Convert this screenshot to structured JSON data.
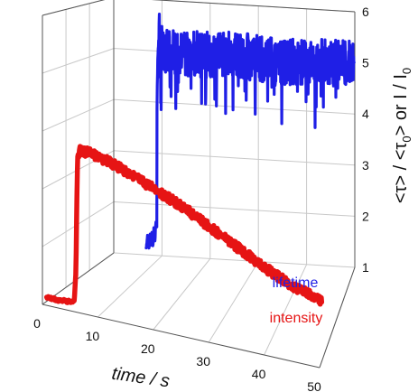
{
  "chart_data": {
    "type": "line",
    "projection": "3d-perspective",
    "x_axis": {
      "label": "time / s",
      "ticks": [
        0,
        10,
        20,
        30,
        40,
        50
      ],
      "range": [
        0,
        50
      ]
    },
    "z_axis": {
      "label": "<τ> / <τ0> or I / I0",
      "label_parts": {
        "a": "<τ> / <τ",
        "a_sub": "0",
        "b": "> or I / I",
        "b_sub": "0"
      },
      "ticks": [
        1,
        2,
        3,
        4,
        5,
        6
      ],
      "range": [
        1,
        6
      ]
    },
    "grid": true,
    "series": [
      {
        "name": "lifetime",
        "color": "#1f1fe6",
        "depth": "back",
        "x": [
          7,
          7.3,
          7.6,
          7.8,
          8.0,
          8.2,
          8.4,
          8.6,
          8.8,
          9.0,
          9.2,
          9.25,
          9.4,
          9.7,
          10.0,
          12,
          15,
          20,
          25,
          30,
          35,
          40,
          45,
          50
        ],
        "y": [
          1.15,
          1.4,
          1.15,
          1.45,
          1.2,
          1.5,
          1.2,
          1.6,
          1.25,
          1.7,
          1.6,
          4.1,
          4.9,
          5.4,
          5.1,
          5.0,
          5.0,
          5.0,
          5.05,
          5.0,
          4.95,
          5.0,
          5.0,
          5.0
        ],
        "noise": 0.45
      },
      {
        "name": "intensity",
        "color": "#e61414",
        "depth": "front",
        "x": [
          0,
          1,
          2,
          3,
          4,
          5,
          5.3,
          5.6,
          6,
          8,
          10,
          15,
          20,
          25,
          30,
          35,
          40,
          45,
          50
        ],
        "y": [
          1.07,
          1.07,
          1.06,
          1.08,
          1.08,
          1.1,
          1.6,
          3.6,
          3.75,
          3.75,
          3.7,
          3.55,
          3.35,
          3.15,
          2.9,
          2.65,
          2.4,
          2.2,
          2.05
        ],
        "noise": 0.08
      }
    ]
  }
}
